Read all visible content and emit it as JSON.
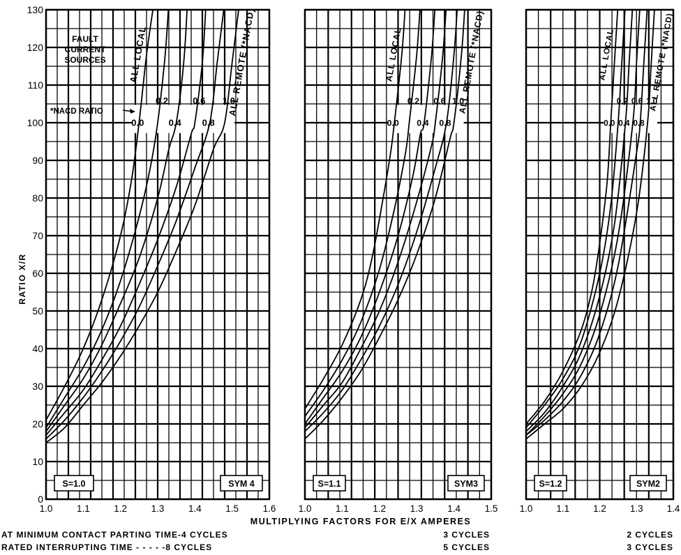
{
  "chart_data": [
    {
      "type": "line",
      "panel_label": "S=1.0",
      "sym_label": "SYM 4",
      "x_ticks": [
        "1.0",
        "1.1",
        "1.2",
        "1.3",
        "1.4",
        "1.5",
        "1.6"
      ],
      "xlim": [
        1.0,
        1.6
      ],
      "y_ticks": [
        "0",
        "10",
        "20",
        "30",
        "40",
        "50",
        "60",
        "70",
        "80",
        "90",
        "100",
        "110",
        "120",
        "130"
      ],
      "ylim": [
        0,
        130
      ],
      "ylabel": "RATIO X/R",
      "curve_labels_top": [
        "ALL LOCAL",
        "ALL REMOTE (*NACD)"
      ],
      "nacd_values": [
        "0.0",
        "0.2",
        "0.4",
        "0.6",
        "0.8",
        "1.0"
      ],
      "fault_label": [
        "FAULT",
        "CURRENT",
        "SOURCES"
      ],
      "nacd_label": "*NACD RATIO",
      "series": [
        {
          "nacd": "0.0",
          "points": [
            [
              1.0,
              21
            ],
            [
              1.05,
              30
            ],
            [
              1.1,
              40
            ],
            [
              1.15,
              53
            ],
            [
              1.2,
              70
            ],
            [
              1.23,
              85
            ],
            [
              1.25,
              100
            ],
            [
              1.27,
              118
            ],
            [
              1.29,
              132
            ]
          ]
        },
        {
          "nacd": "0.2",
          "points": [
            [
              1.0,
              19
            ],
            [
              1.05,
              27
            ],
            [
              1.1,
              35
            ],
            [
              1.15,
              45
            ],
            [
              1.2,
              58
            ],
            [
              1.25,
              75
            ],
            [
              1.28,
              88
            ],
            [
              1.3,
              100
            ],
            [
              1.32,
              118
            ],
            [
              1.33,
              132
            ]
          ]
        },
        {
          "nacd": "0.4",
          "points": [
            [
              1.0,
              18
            ],
            [
              1.05,
              25
            ],
            [
              1.1,
              32
            ],
            [
              1.15,
              41
            ],
            [
              1.2,
              52
            ],
            [
              1.25,
              64
            ],
            [
              1.3,
              80
            ],
            [
              1.33,
              93
            ],
            [
              1.35,
              100
            ],
            [
              1.37,
              116
            ],
            [
              1.38,
              132
            ]
          ]
        },
        {
          "nacd": "0.6",
          "points": [
            [
              1.0,
              17
            ],
            [
              1.05,
              23
            ],
            [
              1.1,
              29
            ],
            [
              1.15,
              37
            ],
            [
              1.2,
              46
            ],
            [
              1.25,
              57
            ],
            [
              1.3,
              69
            ],
            [
              1.35,
              83
            ],
            [
              1.39,
              97
            ],
            [
              1.4,
              100
            ],
            [
              1.42,
              116
            ],
            [
              1.43,
              132
            ]
          ]
        },
        {
          "nacd": "0.8",
          "points": [
            [
              1.0,
              16
            ],
            [
              1.05,
              21
            ],
            [
              1.1,
              27
            ],
            [
              1.15,
              34
            ],
            [
              1.2,
              42
            ],
            [
              1.25,
              51
            ],
            [
              1.3,
              62
            ],
            [
              1.35,
              74
            ],
            [
              1.4,
              88
            ],
            [
              1.44,
              100
            ],
            [
              1.46,
              116
            ],
            [
              1.48,
              132
            ]
          ]
        },
        {
          "nacd": "1.0",
          "points": [
            [
              1.0,
              15
            ],
            [
              1.05,
              19
            ],
            [
              1.1,
              25
            ],
            [
              1.15,
              31
            ],
            [
              1.2,
              38
            ],
            [
              1.25,
              46
            ],
            [
              1.3,
              55
            ],
            [
              1.35,
              66
            ],
            [
              1.4,
              78
            ],
            [
              1.45,
              93
            ],
            [
              1.48,
              100
            ],
            [
              1.5,
              116
            ],
            [
              1.52,
              132
            ]
          ]
        }
      ]
    },
    {
      "type": "line",
      "panel_label": "S=1.1",
      "sym_label": "SYM3",
      "x_ticks": [
        "1.0",
        "1.1",
        "1.2",
        "1.3",
        "1.4",
        "1.5"
      ],
      "xlim": [
        1.0,
        1.5
      ],
      "ylim": [
        0,
        130
      ],
      "curve_labels_top": [
        "ALL LOCAL",
        "ALL REMOTE (*NACD)"
      ],
      "nacd_values": [
        "0.0",
        "0.2",
        "0.4",
        "0.6",
        "0.8",
        "1.0"
      ],
      "series": [
        {
          "nacd": "0.0",
          "points": [
            [
              1.0,
              24
            ],
            [
              1.05,
              32
            ],
            [
              1.1,
              41
            ],
            [
              1.15,
              53
            ],
            [
              1.18,
              64
            ],
            [
              1.21,
              80
            ],
            [
              1.23,
              92
            ],
            [
              1.24,
              100
            ],
            [
              1.26,
              118
            ],
            [
              1.27,
              132
            ]
          ]
        },
        {
          "nacd": "0.2",
          "points": [
            [
              1.0,
              22
            ],
            [
              1.05,
              29
            ],
            [
              1.1,
              37
            ],
            [
              1.15,
              47
            ],
            [
              1.2,
              61
            ],
            [
              1.24,
              77
            ],
            [
              1.27,
              92
            ],
            [
              1.28,
              100
            ],
            [
              1.3,
              118
            ],
            [
              1.31,
              132
            ]
          ]
        },
        {
          "nacd": "0.4",
          "points": [
            [
              1.0,
              20
            ],
            [
              1.05,
              27
            ],
            [
              1.1,
              34
            ],
            [
              1.15,
              43
            ],
            [
              1.2,
              55
            ],
            [
              1.25,
              70
            ],
            [
              1.29,
              86
            ],
            [
              1.31,
              97
            ],
            [
              1.32,
              100
            ],
            [
              1.34,
              118
            ],
            [
              1.35,
              132
            ]
          ]
        },
        {
          "nacd": "0.6",
          "points": [
            [
              1.0,
              19
            ],
            [
              1.05,
              25
            ],
            [
              1.1,
              31
            ],
            [
              1.15,
              40
            ],
            [
              1.2,
              50
            ],
            [
              1.25,
              63
            ],
            [
              1.3,
              79
            ],
            [
              1.34,
              94
            ],
            [
              1.35,
              100
            ],
            [
              1.37,
              118
            ],
            [
              1.38,
              132
            ]
          ]
        },
        {
          "nacd": "0.8",
          "points": [
            [
              1.0,
              18
            ],
            [
              1.05,
              23
            ],
            [
              1.1,
              29
            ],
            [
              1.15,
              37
            ],
            [
              1.2,
              46
            ],
            [
              1.25,
              57
            ],
            [
              1.3,
              71
            ],
            [
              1.35,
              88
            ],
            [
              1.38,
              100
            ],
            [
              1.4,
              118
            ],
            [
              1.41,
              132
            ]
          ]
        },
        {
          "nacd": "1.0",
          "points": [
            [
              1.0,
              16
            ],
            [
              1.05,
              21
            ],
            [
              1.1,
              27
            ],
            [
              1.15,
              34
            ],
            [
              1.2,
              43
            ],
            [
              1.25,
              53
            ],
            [
              1.3,
              65
            ],
            [
              1.35,
              80
            ],
            [
              1.39,
              96
            ],
            [
              1.4,
              100
            ],
            [
              1.42,
              118
            ],
            [
              1.43,
              132
            ]
          ]
        }
      ]
    },
    {
      "type": "line",
      "panel_label": "S=1.2",
      "sym_label": "SYM2",
      "x_ticks": [
        "1.0",
        "1.1",
        "1.2",
        "1.3",
        "1.4"
      ],
      "xlim": [
        1.0,
        1.4
      ],
      "ylim": [
        0,
        130
      ],
      "curve_labels_top": [
        "ALL LOCAL",
        "ALL REMOTE (*NACD)"
      ],
      "nacd_values": [
        "0.0",
        "0.2",
        "0.4",
        "0.6",
        "0.8",
        "1.0"
      ],
      "series": [
        {
          "nacd": "0.0",
          "points": [
            [
              1.0,
              20
            ],
            [
              1.05,
              26
            ],
            [
              1.1,
              34
            ],
            [
              1.15,
              45
            ],
            [
              1.18,
              56
            ],
            [
              1.2,
              68
            ],
            [
              1.22,
              84
            ],
            [
              1.23,
              100
            ],
            [
              1.24,
              116
            ],
            [
              1.25,
              132
            ]
          ]
        },
        {
          "nacd": "0.2",
          "points": [
            [
              1.0,
              19
            ],
            [
              1.05,
              25
            ],
            [
              1.1,
              32
            ],
            [
              1.15,
              42
            ],
            [
              1.2,
              60
            ],
            [
              1.23,
              78
            ],
            [
              1.25,
              100
            ],
            [
              1.26,
              116
            ],
            [
              1.27,
              132
            ]
          ]
        },
        {
          "nacd": "0.4",
          "points": [
            [
              1.0,
              18
            ],
            [
              1.05,
              23
            ],
            [
              1.1,
              30
            ],
            [
              1.15,
              39
            ],
            [
              1.2,
              54
            ],
            [
              1.24,
              73
            ],
            [
              1.27,
              100
            ],
            [
              1.28,
              116
            ],
            [
              1.29,
              132
            ]
          ]
        },
        {
          "nacd": "0.6",
          "points": [
            [
              1.0,
              17
            ],
            [
              1.05,
              22
            ],
            [
              1.1,
              28
            ],
            [
              1.15,
              36
            ],
            [
              1.2,
              49
            ],
            [
              1.25,
              70
            ],
            [
              1.29,
              100
            ],
            [
              1.3,
              116
            ],
            [
              1.31,
              132
            ]
          ]
        },
        {
          "nacd": "0.8",
          "points": [
            [
              1.0,
              17
            ],
            [
              1.05,
              21
            ],
            [
              1.1,
              26
            ],
            [
              1.15,
              33
            ],
            [
              1.2,
              44
            ],
            [
              1.25,
              62
            ],
            [
              1.3,
              92
            ],
            [
              1.31,
              100
            ],
            [
              1.32,
              116
            ],
            [
              1.33,
              132
            ]
          ]
        },
        {
          "nacd": "1.0",
          "points": [
            [
              1.0,
              16
            ],
            [
              1.05,
              20
            ],
            [
              1.1,
              24
            ],
            [
              1.15,
              30
            ],
            [
              1.2,
              39
            ],
            [
              1.25,
              53
            ],
            [
              1.3,
              76
            ],
            [
              1.33,
              100
            ],
            [
              1.34,
              116
            ],
            [
              1.35,
              132
            ]
          ]
        }
      ]
    }
  ],
  "footer": {
    "xlabel": "MULTIPLYING  FACTORS FOR E/X AMPERES",
    "row1_label": "AT MINIMUM CONTACT PARTING TIME-4 CYCLES",
    "row2_label": "RATED INTERRUPTING TIME - - - - -8 CYCLES",
    "row1_panel2": "3 CYCLES",
    "row2_panel2": "5 CYCLES",
    "row1_panel3": "2 CYCLES",
    "row2_panel3": "3 CYCLES"
  }
}
